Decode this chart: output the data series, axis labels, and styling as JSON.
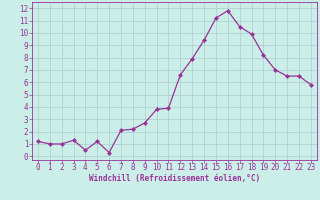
{
  "x": [
    0,
    1,
    2,
    3,
    4,
    5,
    6,
    7,
    8,
    9,
    10,
    11,
    12,
    13,
    14,
    15,
    16,
    17,
    18,
    19,
    20,
    21,
    22,
    23
  ],
  "y": [
    1.2,
    1.0,
    1.0,
    1.3,
    0.5,
    1.2,
    0.3,
    2.1,
    2.2,
    2.7,
    3.8,
    3.9,
    6.6,
    7.9,
    9.4,
    11.2,
    11.8,
    10.5,
    9.9,
    8.2,
    7.0,
    6.5,
    6.5,
    5.8
  ],
  "line_color": "#993399",
  "marker": "D",
  "marker_size": 2.0,
  "bg_color": "#cceee8",
  "grid_color": "#aacccc",
  "xlabel": "Windchill (Refroidissement éolien,°C)",
  "xlabel_color": "#993399",
  "tick_color": "#993399",
  "label_color": "#993399",
  "xlim": [
    -0.5,
    23.5
  ],
  "ylim": [
    -0.3,
    12.5
  ],
  "yticks": [
    0,
    1,
    2,
    3,
    4,
    5,
    6,
    7,
    8,
    9,
    10,
    11,
    12
  ],
  "xticks": [
    0,
    1,
    2,
    3,
    4,
    5,
    6,
    7,
    8,
    9,
    10,
    11,
    12,
    13,
    14,
    15,
    16,
    17,
    18,
    19,
    20,
    21,
    22,
    23
  ],
  "tick_fontsize": 5.5,
  "xlabel_fontsize": 5.5
}
